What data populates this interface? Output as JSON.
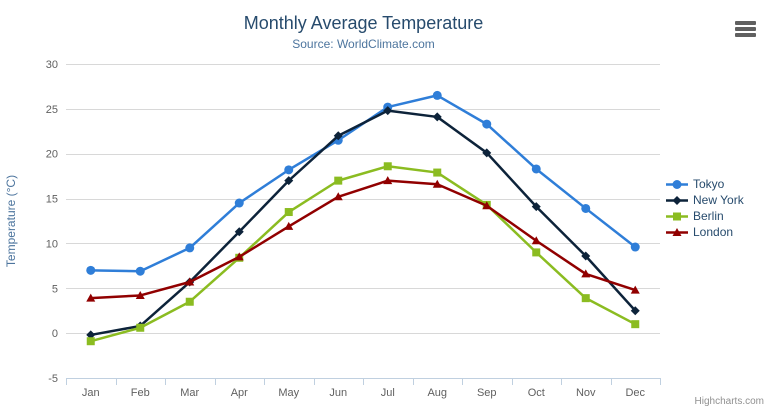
{
  "chart": {
    "title": "Monthly Average Temperature",
    "subtitle": "Source: WorldClimate.com",
    "credits": "Highcharts.com"
  },
  "icons": {
    "export_menu": "hamburger-menu-icon"
  },
  "colors": {
    "title": "#274b6d",
    "subtitle": "#4d759e",
    "axis_labels": "#606060",
    "axis_title": "#4d759e",
    "legend_text": "#274b6d",
    "grid_line": "#d8d8d8",
    "axis_line": "#c0d0e0",
    "credits": "#909090"
  },
  "chart_data": {
    "type": "line",
    "title": "Monthly Average Temperature",
    "subtitle": "Source: WorldClimate.com",
    "categories": [
      "Jan",
      "Feb",
      "Mar",
      "Apr",
      "May",
      "Jun",
      "Jul",
      "Aug",
      "Sep",
      "Oct",
      "Nov",
      "Dec"
    ],
    "series": [
      {
        "name": "Tokyo",
        "color": "#2f7ed8",
        "marker": "circle",
        "values": [
          7.0,
          6.9,
          9.5,
          14.5,
          18.2,
          21.5,
          25.2,
          26.5,
          23.3,
          18.3,
          13.9,
          9.6
        ]
      },
      {
        "name": "New York",
        "color": "#0d233a",
        "marker": "diamond",
        "values": [
          -0.2,
          0.8,
          5.7,
          11.3,
          17.0,
          22.0,
          24.8,
          24.1,
          20.1,
          14.1,
          8.6,
          2.5
        ]
      },
      {
        "name": "Berlin",
        "color": "#8bbc21",
        "marker": "square",
        "values": [
          -0.9,
          0.6,
          3.5,
          8.4,
          13.5,
          17.0,
          18.6,
          17.9,
          14.3,
          9.0,
          3.9,
          1.0
        ]
      },
      {
        "name": "London",
        "color": "#910000",
        "marker": "triangle",
        "values": [
          3.9,
          4.2,
          5.7,
          8.5,
          11.9,
          15.2,
          17.0,
          16.6,
          14.2,
          10.3,
          6.6,
          4.8
        ]
      }
    ],
    "xlabel": "",
    "ylabel": "Temperature (°C)",
    "ylim": [
      -5,
      30
    ],
    "ytick_step": 5,
    "grid": true,
    "legend_position": "right"
  }
}
